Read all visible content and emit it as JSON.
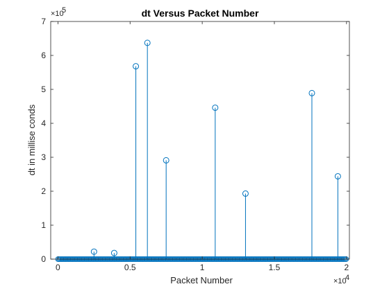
{
  "chart_data": {
    "type": "stem",
    "title": "dt Versus Packet Number",
    "xlabel": "Packet Number",
    "ylabel": "dt in millise conds",
    "x_multiplier": "×10",
    "x_exponent": "4",
    "y_multiplier": "×10",
    "y_exponent": "5",
    "xlim": [
      -0.05,
      2.02
    ],
    "ylim": [
      0,
      7
    ],
    "x_ticks": [
      0,
      0.5,
      1,
      1.5,
      2
    ],
    "x_tick_labels": [
      "0",
      "0.5",
      "1",
      "1.5",
      "2"
    ],
    "y_ticks": [
      0,
      1,
      2,
      3,
      4,
      5,
      6,
      7
    ],
    "y_tick_labels": [
      "0",
      "1",
      "2",
      "3",
      "4",
      "5",
      "6",
      "7"
    ],
    "grid": false,
    "color": "#0072BD",
    "baseline": {
      "x_start": 0.0,
      "x_end": 2.0,
      "marker_step": 0.006,
      "value": 0.0
    },
    "points": [
      {
        "x": 0.25,
        "y": 0.22
      },
      {
        "x": 0.39,
        "y": 0.18
      },
      {
        "x": 0.54,
        "y": 5.68
      },
      {
        "x": 0.62,
        "y": 6.37
      },
      {
        "x": 0.75,
        "y": 2.91
      },
      {
        "x": 1.09,
        "y": 4.46
      },
      {
        "x": 1.3,
        "y": 1.93
      },
      {
        "x": 1.76,
        "y": 4.89
      },
      {
        "x": 1.94,
        "y": 2.44
      }
    ]
  }
}
